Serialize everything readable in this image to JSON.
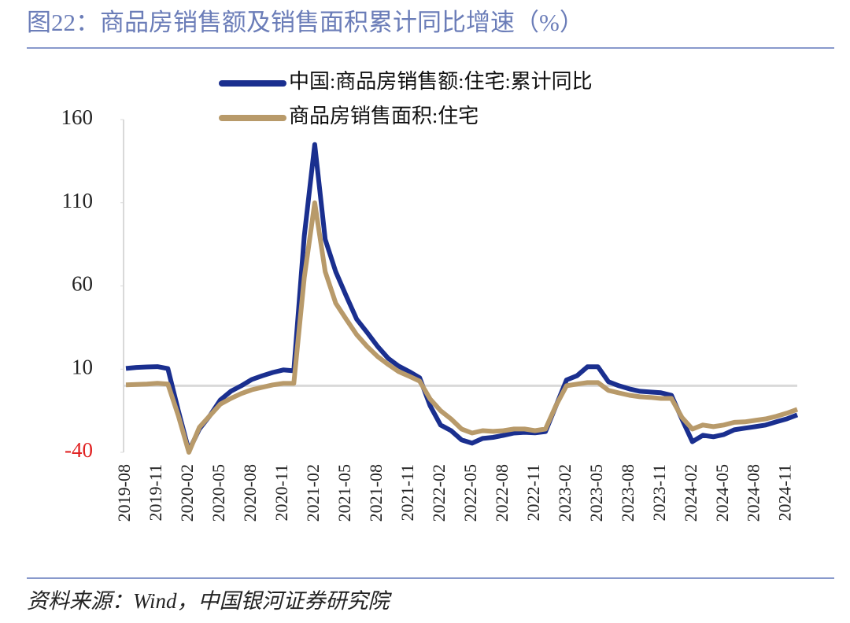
{
  "chart_data": {
    "type": "line",
    "title": "图22：商品房销售额及销售面积累计同比增速（%）",
    "source": "资料来源：Wind，中国银河证券研究院",
    "categories": [
      "2019-08",
      null,
      null,
      "2019-11",
      null,
      null,
      "2020-02",
      null,
      null,
      "2020-05",
      null,
      null,
      "2020-08",
      null,
      null,
      "2020-11",
      null,
      null,
      "2021-02",
      null,
      null,
      "2021-05",
      null,
      null,
      "2021-08",
      null,
      null,
      "2021-11",
      null,
      null,
      "2022-02",
      null,
      null,
      "2022-05",
      null,
      null,
      "2022-08",
      null,
      null,
      "2022-11",
      null,
      null,
      "2023-02",
      null,
      null,
      "2023-05",
      null,
      null,
      "2023-08",
      null,
      null,
      "2023-11",
      null,
      null,
      "2024-02",
      null,
      null,
      "2024-05",
      null,
      null,
      "2024-08",
      null,
      null,
      "2024-11",
      null
    ],
    "series": [
      {
        "name": "中国:商品房销售额:住宅:累计同比",
        "color": "#1a2f8f",
        "values": [
          10.4,
          11,
          11.3,
          11.5,
          10.3,
          -15,
          -39,
          -26,
          -18,
          -8.5,
          -3.3,
          0,
          3.8,
          6,
          8,
          9.5,
          9,
          90,
          145,
          88,
          68.5,
          54,
          40,
          32,
          23.6,
          16.5,
          11.8,
          8.5,
          4.8,
          -12,
          -23.6,
          -27,
          -32.6,
          -34.5,
          -31.7,
          -31,
          -29.8,
          -28.4,
          -28,
          -28.3,
          -27.5,
          -12,
          3.5,
          6,
          11.4,
          11.4,
          2.4,
          0,
          -1.9,
          -3.3,
          -3.8,
          -4.2,
          -5.7,
          -20,
          -33.6,
          -29.8,
          -30.7,
          -29.3,
          -26.5,
          -25.5,
          -24.6,
          -23.6,
          -21.7,
          -19.9,
          -17.5
        ]
      },
      {
        "name": "商品房销售面积:住宅",
        "color": "#b89a6a",
        "values": [
          0.5,
          0.8,
          1,
          1.5,
          1,
          -18,
          -40,
          -25,
          -18,
          -11,
          -7.6,
          -4.7,
          -2.4,
          -0.9,
          0.5,
          1.4,
          1.4,
          65,
          110,
          68.6,
          49.6,
          40,
          30.7,
          23.6,
          17.5,
          12.8,
          8.5,
          5.7,
          2.8,
          -8,
          -15,
          -20,
          -26,
          -28.4,
          -27,
          -27.4,
          -27,
          -26,
          -26,
          -27,
          -26,
          -11.8,
          0,
          1,
          1.9,
          1.9,
          -2.8,
          -4.3,
          -5.7,
          -6.6,
          -7,
          -7.6,
          -7.6,
          -19,
          -26,
          -23.6,
          -24.6,
          -23.6,
          -22,
          -21.7,
          -20.8,
          -19.9,
          -18.4,
          -16.5,
          -14.2
        ]
      }
    ],
    "ylim": [
      -40,
      160
    ],
    "yticks": [
      -40,
      10,
      60,
      110,
      160
    ],
    "negative_tick_color": "#e02020",
    "legend": "top"
  }
}
